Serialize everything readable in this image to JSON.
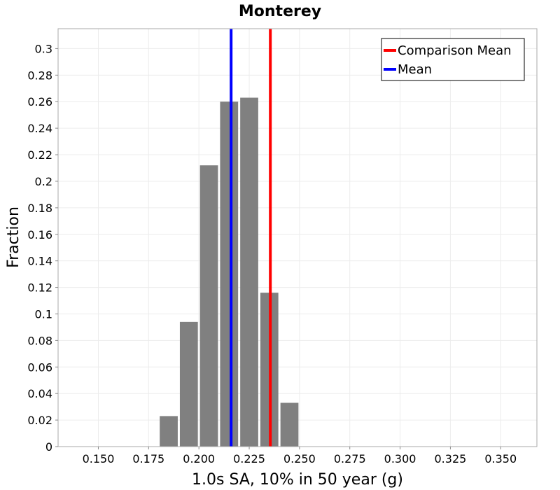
{
  "chart_data": {
    "type": "bar",
    "title": "Monterey",
    "xlabel": "1.0s SA, 10% in 50 year (g)",
    "ylabel": "Fraction",
    "xlim": [
      0.13,
      0.368
    ],
    "ylim": [
      0,
      0.315
    ],
    "bin_width": 0.01,
    "x_ticks": [
      0.15,
      0.175,
      0.2,
      0.225,
      0.25,
      0.275,
      0.3,
      0.325,
      0.35
    ],
    "x_tick_labels": [
      "0.150",
      "0.175",
      "0.200",
      "0.225",
      "0.250",
      "0.275",
      "0.300",
      "0.325",
      "0.350"
    ],
    "y_ticks": [
      0,
      0.02,
      0.04,
      0.06,
      0.08,
      0.1,
      0.12,
      0.14,
      0.16,
      0.18,
      0.2,
      0.22,
      0.24,
      0.26,
      0.28,
      0.3
    ],
    "y_tick_labels": [
      "0",
      "0.02",
      "0.04",
      "0.06",
      "0.08",
      "0.1",
      "0.12",
      "0.14",
      "0.16",
      "0.18",
      "0.2",
      "0.22",
      "0.24",
      "0.26",
      "0.28",
      "0.3"
    ],
    "bins": [
      0.18,
      0.19,
      0.2,
      0.21,
      0.22,
      0.23,
      0.24
    ],
    "values": [
      0.023,
      0.094,
      0.212,
      0.26,
      0.263,
      0.116,
      0.033
    ],
    "bar_color": "#808080",
    "lines": [
      {
        "name": "Comparison Mean",
        "x": 0.2355,
        "color": "#ff0000"
      },
      {
        "name": "Mean",
        "x": 0.216,
        "color": "#0000ff"
      }
    ],
    "legend": {
      "position": "top-right",
      "entries": [
        {
          "label": "Comparison Mean",
          "color": "#ff0000"
        },
        {
          "label": "Mean",
          "color": "#0000ff"
        }
      ]
    },
    "grid": true
  }
}
